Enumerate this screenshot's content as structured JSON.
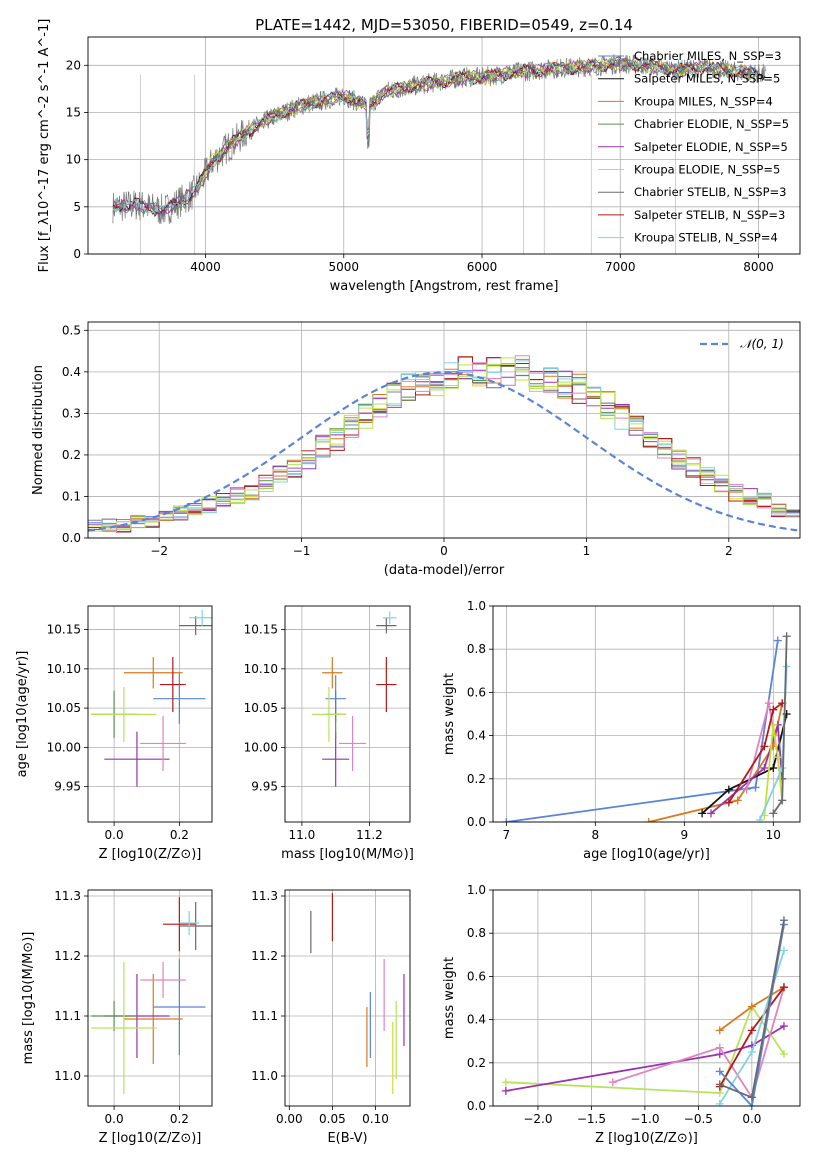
{
  "title": "PLATE=1442, MJD=53050, FIBERID=0549, z=0.14",
  "colors": {
    "Chabrier MILES": "#5b84d6",
    "Salpeter MILES": "#111111",
    "Kroupa MILES": "#d97a1e",
    "Chabrier ELODIE": "#5a8f4f",
    "Salpeter ELODIE": "#9a30b4",
    "Kroupa ELODIE": "#c9e03a",
    "Chabrier STELIB": "#6a6a6a",
    "Salpeter STELIB": "#b41818",
    "Kroupa STELIB": "#7fd4e0",
    "pink": "#e083c0",
    "lime": "#b7e35a",
    "gauss": "#5b84d6"
  },
  "chart_data": [
    {
      "type": "line",
      "name": "spectrum",
      "title": "PLATE=1442, MJD=53050, FIBERID=0549, z=0.14",
      "xlabel": "wavelength [Angstrom, rest frame]",
      "ylabel": "Flux [f_λ10^-17 erg cm^-2 s^-1 A^-1]",
      "xlim": [
        3150,
        8300
      ],
      "ylim": [
        0,
        23
      ],
      "xticks": [
        4000,
        5000,
        6000,
        7000,
        8000
      ],
      "yticks": [
        0,
        5,
        10,
        15,
        20
      ],
      "legend": "top-right",
      "x": [
        3330,
        3500,
        3700,
        3900,
        3950,
        4050,
        4150,
        4300,
        4500,
        4700,
        4860,
        5000,
        5175,
        5300,
        5500,
        5700,
        5900,
        6000,
        6200,
        6400,
        6563,
        6800,
        7000,
        7200,
        7400,
        7600,
        7800,
        8000
      ],
      "y": [
        5.0,
        5.2,
        4.6,
        6.3,
        7.2,
        9.8,
        11.2,
        13.0,
        14.6,
        15.8,
        16.3,
        16.8,
        15.6,
        17.2,
        17.8,
        18.3,
        18.8,
        18.7,
        19.2,
        19.5,
        19.7,
        19.9,
        20.2,
        20.0,
        19.5,
        19.8,
        19.4,
        19.1
      ],
      "series": [
        {
          "name": "Chabrier MILES, N_SSP=3"
        },
        {
          "name": "Salpeter MILES, N_SSP=5"
        },
        {
          "name": "Kroupa MILES, N_SSP=4"
        },
        {
          "name": "Chabrier ELODIE, N_SSP=5"
        },
        {
          "name": "Salpeter ELODIE, N_SSP=5"
        },
        {
          "name": "Kroupa ELODIE, N_SSP=5"
        },
        {
          "name": "Chabrier STELIB, N_SSP=3"
        },
        {
          "name": "Salpeter STELIB, N_SSP=3"
        },
        {
          "name": "Kroupa STELIB, N_SSP=4"
        }
      ]
    },
    {
      "type": "line",
      "name": "residual-histogram",
      "xlabel": "(data-model)/error",
      "ylabel": "Normed distribution",
      "xlim": [
        -2.5,
        2.5
      ],
      "ylim": [
        0,
        0.52
      ],
      "xticks": [
        -2,
        -1,
        0,
        1,
        2
      ],
      "yticks": [
        0.0,
        0.1,
        0.2,
        0.3,
        0.4,
        0.5
      ],
      "legend": "top-right",
      "gauss_label": "𝒩(0, 1)",
      "bin_width": 0.1,
      "bin_start": -2.5,
      "base": [
        0.03,
        0.03,
        0.03,
        0.04,
        0.04,
        0.05,
        0.06,
        0.07,
        0.08,
        0.09,
        0.1,
        0.11,
        0.13,
        0.15,
        0.17,
        0.19,
        0.22,
        0.24,
        0.27,
        0.29,
        0.32,
        0.34,
        0.36,
        0.37,
        0.38,
        0.39,
        0.4,
        0.4,
        0.4,
        0.4,
        0.4,
        0.39,
        0.38,
        0.37,
        0.36,
        0.34,
        0.32,
        0.29,
        0.27,
        0.24,
        0.22,
        0.19,
        0.17,
        0.15,
        0.13,
        0.11,
        0.1,
        0.09,
        0.07,
        0.06
      ]
    },
    {
      "type": "scatter",
      "name": "age-vs-Z",
      "xlabel": "Z [log10(Z/Z⊙)]",
      "ylabel": "age  [log10(age/yr)]",
      "xlim": [
        -0.08,
        0.3
      ],
      "ylim": [
        9.905,
        10.18
      ],
      "xticks": [
        0.0,
        0.2
      ],
      "yticks": [
        9.95,
        10.0,
        10.05,
        10.1,
        10.15
      ],
      "points": [
        {
          "c": "Chabrier MILES",
          "x": 0.2,
          "xerr": 0.08,
          "y": 10.062,
          "yerr": 0.032
        },
        {
          "c": "Kroupa MILES",
          "x": 0.12,
          "xerr": 0.09,
          "y": 10.095,
          "yerr": 0.02
        },
        {
          "c": "Salpeter STELIB",
          "x": 0.18,
          "xerr": 0.04,
          "y": 10.08,
          "yerr": 0.035
        },
        {
          "c": "Chabrier STELIB",
          "x": 0.25,
          "xerr": 0.05,
          "y": 10.155,
          "yerr": 0.012
        },
        {
          "c": "Kroupa STELIB",
          "x": 0.27,
          "xerr": 0.04,
          "y": 10.165,
          "yerr": 0.01
        },
        {
          "c": "Salpeter ELODIE",
          "x": 0.07,
          "xerr": 0.1,
          "y": 9.985,
          "yerr": 0.035
        },
        {
          "c": "pink",
          "x": 0.15,
          "xerr": 0.07,
          "y": 10.005,
          "yerr": 0.035
        },
        {
          "c": "Chabrier ELODIE",
          "x": 0.0,
          "xerr": 0.07,
          "y": 10.042,
          "yerr": 0.03
        },
        {
          "c": "lime",
          "x": 0.03,
          "xerr": 0.1,
          "y": 10.042,
          "yerr": 0.035
        }
      ]
    },
    {
      "type": "scatter",
      "name": "age-vs-mass",
      "xlabel": "mass [log10(M/M⊙)]",
      "ylabel": "",
      "xlim": [
        10.95,
        11.32
      ],
      "ylim": [
        9.905,
        10.18
      ],
      "xticks": [
        11.0,
        11.2
      ],
      "yticks": [
        9.95,
        10.0,
        10.05,
        10.1,
        10.15
      ],
      "points": [
        {
          "c": "Chabrier MILES",
          "x": 11.1,
          "xerr": 0.03,
          "y": 10.062,
          "yerr": 0.03
        },
        {
          "c": "Kroupa MILES",
          "x": 11.09,
          "xerr": 0.03,
          "y": 10.095,
          "yerr": 0.02
        },
        {
          "c": "Salpeter STELIB",
          "x": 11.25,
          "xerr": 0.03,
          "y": 10.08,
          "yerr": 0.035
        },
        {
          "c": "Chabrier STELIB",
          "x": 11.25,
          "xerr": 0.03,
          "y": 10.155,
          "yerr": 0.01
        },
        {
          "c": "Kroupa STELIB",
          "x": 11.26,
          "xerr": 0.02,
          "y": 10.165,
          "yerr": 0.008
        },
        {
          "c": "Salpeter ELODIE",
          "x": 11.1,
          "xerr": 0.04,
          "y": 9.985,
          "yerr": 0.035
        },
        {
          "c": "pink",
          "x": 11.15,
          "xerr": 0.04,
          "y": 10.005,
          "yerr": 0.035
        },
        {
          "c": "Chabrier ELODIE",
          "x": 11.1,
          "xerr": 0.03,
          "y": 10.042,
          "yerr": 0.03
        },
        {
          "c": "lime",
          "x": 11.08,
          "xerr": 0.05,
          "y": 10.042,
          "yerr": 0.035
        }
      ]
    },
    {
      "type": "line",
      "name": "mass-weight-vs-age",
      "xlabel": "age  [log10(age/yr)]",
      "ylabel": "mass weight",
      "xlim": [
        6.85,
        10.3
      ],
      "ylim": [
        0,
        1
      ],
      "xticks": [
        7,
        8,
        9,
        10
      ],
      "yticks": [
        0.0,
        0.2,
        0.4,
        0.6,
        0.8,
        1.0
      ],
      "series": [
        {
          "c": "Chabrier MILES",
          "x": [
            7.0,
            9.8,
            10.05
          ],
          "y": [
            0.0,
            0.16,
            0.84
          ]
        },
        {
          "c": "Kroupa MILES",
          "x": [
            8.6,
            9.6,
            10.0,
            10.1
          ],
          "y": [
            0.0,
            0.1,
            0.35,
            0.55
          ]
        },
        {
          "c": "Salpeter MILES",
          "x": [
            9.2,
            9.5,
            10.0,
            10.15
          ],
          "y": [
            0.04,
            0.15,
            0.25,
            0.5
          ]
        },
        {
          "c": "Salpeter ELODIE",
          "x": [
            9.3,
            9.9,
            10.05,
            10.1
          ],
          "y": [
            0.04,
            0.25,
            0.45,
            0.2
          ]
        },
        {
          "c": "pink",
          "x": [
            9.7,
            9.95,
            10.05,
            10.1
          ],
          "y": [
            0.15,
            0.55,
            0.3,
            0.1
          ]
        },
        {
          "c": "Kroupa ELODIE",
          "x": [
            9.9,
            10.0,
            10.05,
            10.1
          ],
          "y": [
            0.03,
            0.45,
            0.3,
            0.1
          ]
        },
        {
          "c": "Salpeter STELIB",
          "x": [
            9.5,
            9.9,
            10.0,
            10.1
          ],
          "y": [
            0.09,
            0.35,
            0.52,
            0.55
          ]
        },
        {
          "c": "Kroupa STELIB",
          "x": [
            9.85,
            10.1,
            10.15
          ],
          "y": [
            0.01,
            0.25,
            0.72
          ]
        },
        {
          "c": "Chabrier STELIB",
          "x": [
            10.0,
            10.1,
            10.15
          ],
          "y": [
            0.04,
            0.1,
            0.86
          ]
        }
      ]
    },
    {
      "type": "scatter",
      "name": "mass-vs-Z",
      "xlabel": "Z [log10(Z/Z⊙)]",
      "ylabel": "mass [log10(M/M⊙)]",
      "xlim": [
        -0.08,
        0.3
      ],
      "ylim": [
        10.95,
        11.31
      ],
      "xticks": [
        0.0,
        0.2
      ],
      "yticks": [
        11.0,
        11.1,
        11.2,
        11.3
      ],
      "points": [
        {
          "c": "Chabrier MILES",
          "x": 0.2,
          "xerr": 0.08,
          "y": 11.115,
          "yerr": 0.08
        },
        {
          "c": "Kroupa MILES",
          "x": 0.12,
          "xerr": 0.09,
          "y": 11.095,
          "yerr": 0.075
        },
        {
          "c": "Salpeter STELIB",
          "x": 0.2,
          "xerr": 0.05,
          "y": 11.253,
          "yerr": 0.045
        },
        {
          "c": "Chabrier STELIB",
          "x": 0.25,
          "xerr": 0.05,
          "y": 11.25,
          "yerr": 0.04
        },
        {
          "c": "Kroupa STELIB",
          "x": 0.23,
          "xerr": 0.03,
          "y": 11.255,
          "yerr": 0.02
        },
        {
          "c": "Salpeter ELODIE",
          "x": 0.07,
          "xerr": 0.1,
          "y": 11.1,
          "yerr": 0.07
        },
        {
          "c": "pink",
          "x": 0.15,
          "xerr": 0.07,
          "y": 11.16,
          "yerr": 0.03
        },
        {
          "c": "Chabrier ELODIE",
          "x": 0.0,
          "xerr": 0.07,
          "y": 11.1,
          "yerr": 0.025
        },
        {
          "c": "lime",
          "x": 0.03,
          "xerr": 0.1,
          "y": 11.08,
          "yerr": 0.11
        }
      ]
    },
    {
      "type": "scatter",
      "name": "mass-vs-EBV",
      "xlabel": "E(B-V)",
      "ylabel": "",
      "xlim": [
        -0.005,
        0.14
      ],
      "ylim": [
        10.95,
        11.31
      ],
      "xticks": [
        0.0,
        0.05,
        0.1
      ],
      "yticks": [
        11.0,
        11.1,
        11.2,
        11.3
      ],
      "points": [
        {
          "c": "Chabrier STELIB",
          "x": 0.025,
          "y": 11.24,
          "yerr": 0.035
        },
        {
          "c": "Salpeter STELIB",
          "x": 0.05,
          "y": 11.265,
          "yerr": 0.04
        },
        {
          "c": "Kroupa MILES",
          "x": 0.09,
          "y": 11.065,
          "yerr": 0.05
        },
        {
          "c": "Chabrier MILES",
          "x": 0.094,
          "y": 11.085,
          "yerr": 0.055
        },
        {
          "c": "pink",
          "x": 0.11,
          "y": 11.135,
          "yerr": 0.06
        },
        {
          "c": "lime",
          "x": 0.124,
          "y": 11.06,
          "yerr": 0.065
        },
        {
          "c": "Salpeter ELODIE",
          "x": 0.133,
          "y": 11.11,
          "yerr": 0.06
        },
        {
          "c": "Kroupa ELODIE",
          "x": 0.12,
          "y": 11.03,
          "yerr": 0.06
        }
      ]
    },
    {
      "type": "line",
      "name": "mass-weight-vs-Z",
      "xlabel": "Z [log10(Z/Z⊙)]",
      "ylabel": "mass weight",
      "xlim": [
        -2.42,
        0.45
      ],
      "ylim": [
        0,
        1
      ],
      "xticks": [
        -2.0,
        -1.5,
        -1.0,
        -0.5,
        0.0
      ],
      "yticks": [
        0.0,
        0.2,
        0.4,
        0.6,
        0.8,
        1.0
      ],
      "series": [
        {
          "c": "lime",
          "x": [
            -2.3,
            -0.3,
            0.0,
            0.3
          ],
          "y": [
            0.11,
            0.06,
            0.46,
            0.24
          ]
        },
        {
          "c": "Salpeter ELODIE",
          "x": [
            -2.3,
            -0.3,
            0.0,
            0.3
          ],
          "y": [
            0.07,
            0.24,
            0.28,
            0.37
          ]
        },
        {
          "c": "pink",
          "x": [
            -1.3,
            -0.3,
            0.0,
            0.3
          ],
          "y": [
            0.11,
            0.27,
            0.04,
            0.55
          ]
        },
        {
          "c": "Kroupa MILES",
          "x": [
            -0.3,
            0.0,
            0.3
          ],
          "y": [
            0.35,
            0.46,
            0.55
          ]
        },
        {
          "c": "Salpeter STELIB",
          "x": [
            -0.3,
            0.0,
            0.3
          ],
          "y": [
            0.09,
            0.35,
            0.55
          ]
        },
        {
          "c": "Kroupa STELIB",
          "x": [
            -0.3,
            0.0,
            0.3
          ],
          "y": [
            0.01,
            0.25,
            0.72
          ]
        },
        {
          "c": "Chabrier MILES",
          "x": [
            -0.3,
            0.0,
            0.3
          ],
          "y": [
            0.16,
            0.0,
            0.84
          ]
        },
        {
          "c": "Chabrier STELIB",
          "x": [
            -0.3,
            0.0,
            0.3
          ],
          "y": [
            0.1,
            0.04,
            0.86
          ]
        }
      ]
    }
  ]
}
